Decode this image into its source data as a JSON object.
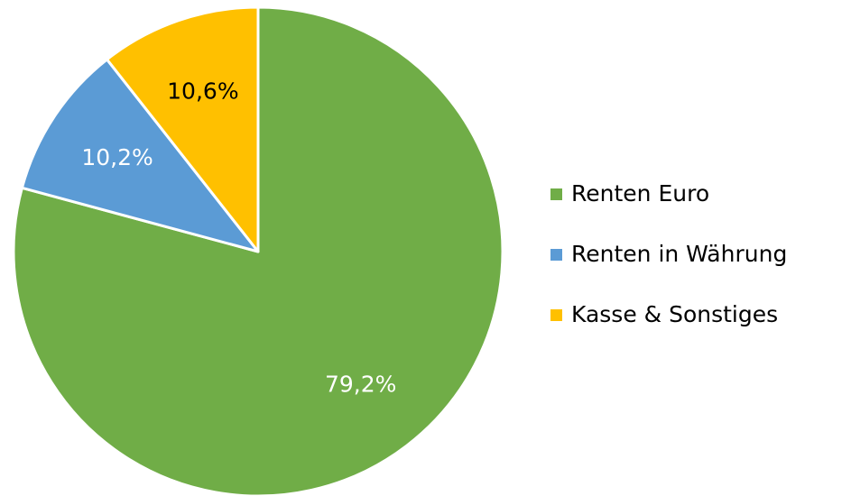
{
  "chart_data": {
    "type": "pie",
    "categories": [
      "Renten Euro",
      "Renten in Währung",
      "Kasse & Sonstiges"
    ],
    "values": [
      79.2,
      10.2,
      10.6
    ],
    "value_labels": [
      "79,2%",
      "10,2%",
      "10,6%"
    ],
    "colors": [
      "#70ad47",
      "#5b9bd5",
      "#ffc000"
    ],
    "label_colors": [
      "#ffffff",
      "#ffffff",
      "#000000"
    ],
    "legend": "right"
  }
}
